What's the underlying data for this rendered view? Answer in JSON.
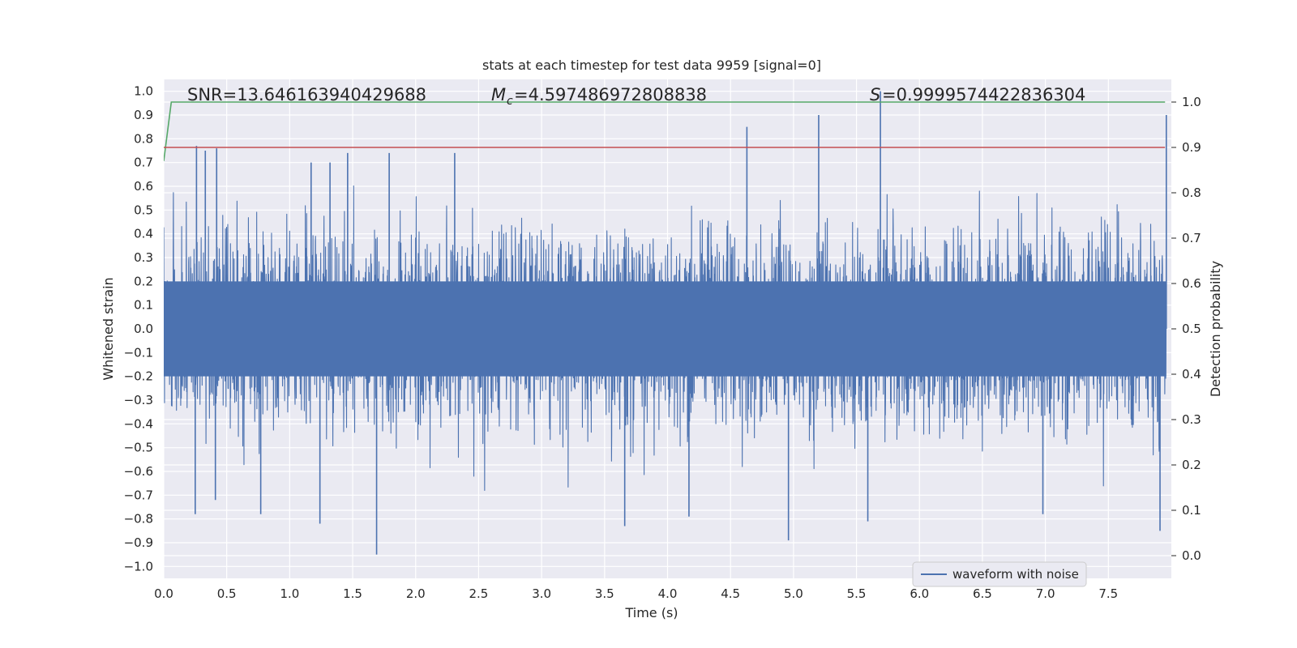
{
  "chart_data": {
    "type": "line",
    "title": "stats at each timestep for test data 9959 [signal=0]",
    "xlabel": "Time (s)",
    "ylabel": "Whitened strain",
    "ylabel_right": "Detection probability",
    "xlim": [
      0.0,
      8.0
    ],
    "ylim": [
      -1.05,
      1.05
    ],
    "ylim_right": [
      -0.05,
      1.05
    ],
    "x_ticks": [
      "0.0",
      "0.5",
      "1.0",
      "1.5",
      "2.0",
      "2.5",
      "3.0",
      "3.5",
      "4.0",
      "4.5",
      "5.0",
      "5.5",
      "6.0",
      "6.5",
      "7.0",
      "7.5"
    ],
    "y_ticks": [
      "1.0",
      "0.9",
      "0.8",
      "0.7",
      "0.6",
      "0.5",
      "0.4",
      "0.3",
      "0.2",
      "0.1",
      "0.0",
      "-0.1",
      "-0.2",
      "-0.3",
      "-0.4",
      "-0.5",
      "-0.6",
      "-0.7",
      "-0.8",
      "-0.9",
      "-1.0"
    ],
    "y_ticks_right": [
      "1.0",
      "0.9",
      "0.8",
      "0.7",
      "0.6",
      "0.5",
      "0.4",
      "0.3",
      "0.2",
      "0.1",
      "0.0"
    ],
    "annotations": {
      "snr": "SNR=13.646163940429688",
      "mc_symbol": "M",
      "mc_subscript": "c",
      "mc_value": "=4.597486972808838",
      "s_symbol": "S",
      "s_value": "=0.9999574422836304"
    },
    "legend": {
      "label": "waveform with noise",
      "position": "lower-right"
    },
    "grid": true,
    "colors": {
      "waveform": "#4c72b0",
      "probability": "#55a868",
      "threshold": "#c44e52",
      "plot_bg": "#eaeaf2",
      "grid": "#ffffff"
    },
    "series": [
      {
        "name": "waveform with noise",
        "axis": "left",
        "note": "dense whitened noise, envelope ~±0.3 to ±0.7; notable spikes",
        "spikes": [
          {
            "x": 0.26,
            "y": 0.77
          },
          {
            "x": 0.33,
            "y": 0.75
          },
          {
            "x": 0.42,
            "y": 0.76
          },
          {
            "x": 1.17,
            "y": 0.7
          },
          {
            "x": 1.32,
            "y": 0.7
          },
          {
            "x": 1.46,
            "y": 0.74
          },
          {
            "x": 1.79,
            "y": 0.74
          },
          {
            "x": 2.31,
            "y": 0.74
          },
          {
            "x": 4.63,
            "y": 0.85
          },
          {
            "x": 5.2,
            "y": 0.9
          },
          {
            "x": 5.69,
            "y": 1.0
          },
          {
            "x": 7.96,
            "y": 0.9
          },
          {
            "x": 0.25,
            "y": -0.78
          },
          {
            "x": 0.41,
            "y": -0.72
          },
          {
            "x": 0.77,
            "y": -0.78
          },
          {
            "x": 1.24,
            "y": -0.82
          },
          {
            "x": 1.69,
            "y": -0.95
          },
          {
            "x": 3.66,
            "y": -0.83
          },
          {
            "x": 4.17,
            "y": -0.79
          },
          {
            "x": 4.96,
            "y": -0.89
          },
          {
            "x": 5.59,
            "y": -0.81
          },
          {
            "x": 6.98,
            "y": -0.78
          },
          {
            "x": 7.91,
            "y": -0.85
          }
        ]
      },
      {
        "name": "detection probability",
        "axis": "right",
        "x": [
          0.0,
          0.06,
          7.95
        ],
        "y": [
          0.87,
          1.0,
          1.0
        ]
      },
      {
        "name": "threshold",
        "axis": "right",
        "x": [
          0.0,
          7.95
        ],
        "y": [
          0.9,
          0.9
        ]
      }
    ]
  }
}
